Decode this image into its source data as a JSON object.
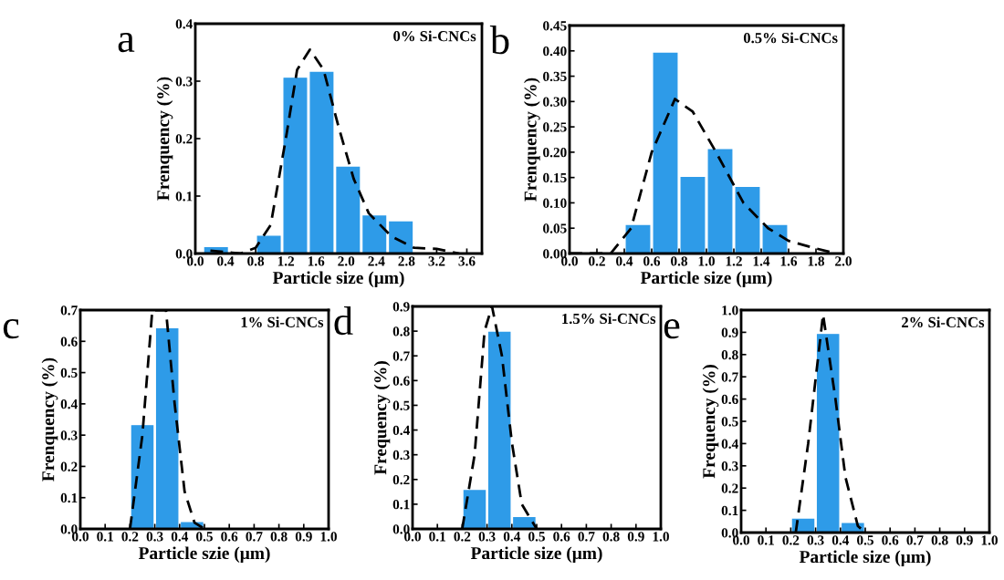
{
  "chart_data": [
    {
      "type": "histogram",
      "title": "a",
      "xlabel": "Particle size (μm)",
      "ylabel": "Frenquency (%)",
      "annotations": [
        "0% Si-CNCs"
      ],
      "color": "#2e9be8",
      "bins": [
        0.1,
        0.45,
        0.8,
        1.15,
        1.5,
        1.85,
        2.2,
        2.55,
        2.9
      ],
      "values": [
        0.01,
        0,
        0.03,
        0.305,
        0.315,
        0.15,
        0.065,
        0.055
      ],
      "series": [
        {
          "type": "line",
          "color": "#000000",
          "line_style": "dashed",
          "x": [
            0.2,
            0.6,
            0.8,
            1.0,
            1.2,
            1.35,
            1.52,
            1.7,
            1.9,
            2.1,
            2.3,
            2.6,
            2.9,
            3.2,
            3.5
          ],
          "values": [
            0.005,
            0.0,
            0.01,
            0.05,
            0.2,
            0.32,
            0.355,
            0.32,
            0.22,
            0.13,
            0.07,
            0.03,
            0.01,
            0.008,
            0.0
          ]
        }
      ],
      "xlim": [
        0,
        3.8
      ],
      "xticks": [
        {
          "value": 0,
          "label": "0.0"
        },
        0.4,
        0.8,
        1.2,
        1.6,
        {
          "value": 2,
          "label": "2.0"
        },
        2.4,
        2.8,
        3.2,
        3.6
      ],
      "ylim": [
        0,
        0.4
      ],
      "yticks": [
        {
          "value": 0,
          "label": "0.0"
        },
        0.1,
        0.2,
        0.3,
        0.4
      ]
    },
    {
      "type": "histogram",
      "title": "b",
      "xlabel": "Particle size (μm)",
      "ylabel": "Frenquency (%)",
      "annotations": [
        "0.5% Si-CNCs"
      ],
      "color": "#2e9be8",
      "bins": [
        0.4,
        0.6,
        0.8,
        1.0,
        1.2,
        1.4,
        1.6
      ],
      "values": [
        0.055,
        0.395,
        0.15,
        0.205,
        0.13,
        0.055
      ],
      "series": [
        {
          "type": "line",
          "color": "#000000",
          "line_style": "dashed",
          "x": [
            0.0,
            0.3,
            0.45,
            0.6,
            0.77,
            0.9,
            1.07,
            1.27,
            1.45,
            1.6,
            1.8,
            1.95
          ],
          "values": [
            0.0,
            0.0,
            0.05,
            0.2,
            0.305,
            0.28,
            0.2,
            0.1,
            0.05,
            0.025,
            0.01,
            0.0
          ]
        }
      ],
      "xlim": [
        0,
        2
      ],
      "xticks": [
        {
          "value": 0,
          "label": "0.0"
        },
        0.2,
        0.4,
        0.6,
        0.8,
        {
          "value": 1,
          "label": "1.0"
        },
        1.2,
        1.4,
        1.6,
        1.8,
        {
          "value": 2,
          "label": "2.0"
        }
      ],
      "ylim": [
        0,
        0.45
      ],
      "yticks": [
        {
          "value": 0,
          "label": "0.00"
        },
        0.05,
        {
          "value": 0.1,
          "label": "0.10"
        },
        0.15,
        {
          "value": 0.2,
          "label": "0.20"
        },
        0.25,
        {
          "value": 0.3,
          "label": "0.30"
        },
        0.35,
        {
          "value": 0.4,
          "label": "0.40"
        },
        0.45
      ]
    },
    {
      "type": "histogram",
      "title": "c",
      "xlabel": "Particle szie (μm)",
      "ylabel": "Frenquency (%)",
      "annotations": [
        "1% Si-CNCs"
      ],
      "color": "#2e9be8",
      "bins": [
        0.2,
        0.3,
        0.4,
        0.5
      ],
      "values": [
        0.33,
        0.64,
        0.02
      ],
      "series": [
        {
          "type": "line",
          "color": "#000000",
          "line_style": "dashed",
          "x": [
            0.2,
            0.25,
            0.29,
            0.345,
            0.38,
            0.42,
            0.46,
            0.5
          ],
          "values": [
            0.0,
            0.3,
            0.7,
            0.7,
            0.4,
            0.12,
            0.02,
            0.0
          ]
        }
      ],
      "xlim": [
        0,
        1
      ],
      "xticks": [
        {
          "value": 0,
          "label": "0.0"
        },
        0.1,
        0.2,
        0.3,
        0.4,
        0.5,
        0.6,
        0.7,
        0.8,
        0.9,
        {
          "value": 1,
          "label": "1.0"
        }
      ],
      "ylim": [
        0,
        0.7
      ],
      "yticks": [
        {
          "value": 0,
          "label": "0.0"
        },
        0.1,
        0.2,
        0.3,
        0.4,
        0.5,
        0.6,
        0.7
      ]
    },
    {
      "type": "histogram",
      "title": "d",
      "xlabel": "Particle size (μm)",
      "ylabel": "Frequency (%)",
      "annotations": [
        "1.5% Si-CNCs"
      ],
      "color": "#2e9be8",
      "bins": [
        0.2,
        0.3,
        0.4,
        0.5
      ],
      "values": [
        0.155,
        0.795,
        0.045
      ],
      "series": [
        {
          "type": "line",
          "color": "#000000",
          "line_style": "dashed",
          "x": [
            0.2,
            0.25,
            0.29,
            0.32,
            0.36,
            0.4,
            0.44,
            0.5
          ],
          "values": [
            0.0,
            0.3,
            0.8,
            0.9,
            0.7,
            0.35,
            0.1,
            0.0
          ]
        }
      ],
      "xlim": [
        0,
        1
      ],
      "xticks": [
        {
          "value": 0,
          "label": "0.0"
        },
        0.1,
        0.2,
        0.3,
        0.4,
        0.5,
        0.6,
        0.7,
        0.8,
        0.9,
        {
          "value": 1,
          "label": "1.0"
        }
      ],
      "ylim": [
        0,
        0.9
      ],
      "yticks": [
        {
          "value": 0,
          "label": "0.0"
        },
        0.1,
        0.2,
        0.3,
        0.4,
        0.5,
        0.6,
        0.7,
        0.8,
        0.9
      ]
    },
    {
      "type": "histogram",
      "title": "e",
      "xlabel": "Particle size (μm)",
      "ylabel": "Frequency (%)",
      "annotations": [
        "2% Si-CNCs"
      ],
      "color": "#2e9be8",
      "bins": [
        0.2,
        0.3,
        0.4,
        0.5
      ],
      "values": [
        0.06,
        0.89,
        0.04
      ],
      "series": [
        {
          "type": "line",
          "color": "#000000",
          "line_style": "dashed",
          "x": [
            0.22,
            0.27,
            0.33,
            0.38,
            0.42,
            0.47,
            0.5
          ],
          "values": [
            0.0,
            0.4,
            0.98,
            0.6,
            0.25,
            0.03,
            0.0
          ]
        }
      ],
      "xlim": [
        0,
        1
      ],
      "xticks": [
        {
          "value": 0,
          "label": "0.0"
        },
        0.1,
        0.2,
        0.3,
        0.4,
        0.5,
        0.6,
        0.7,
        0.8,
        0.9,
        {
          "value": 1,
          "label": "1.0"
        }
      ],
      "ylim": [
        0,
        1
      ],
      "yticks": [
        {
          "value": 0,
          "label": "0.0"
        },
        0.1,
        0.2,
        0.3,
        0.4,
        0.5,
        0.6,
        0.7,
        0.8,
        0.9,
        {
          "value": 1,
          "label": "1.0"
        }
      ]
    }
  ]
}
